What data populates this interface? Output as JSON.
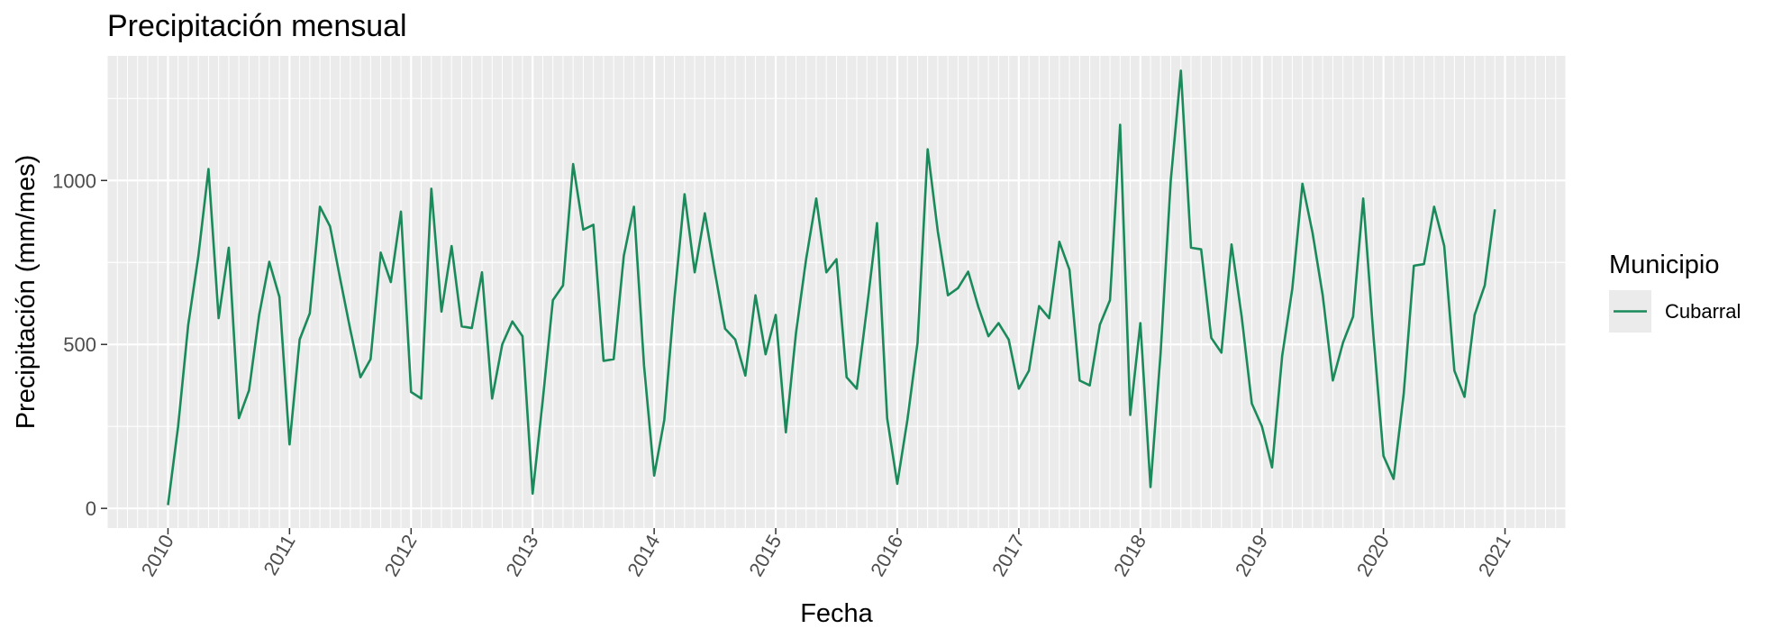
{
  "chart_data": {
    "type": "line",
    "title": "Precipitación mensual",
    "xlabel": "Fecha",
    "ylabel": "Precipitación (mm/mes)",
    "x_ticks": [
      "2010",
      "2011",
      "2012",
      "2013",
      "2014",
      "2015",
      "2016",
      "2017",
      "2018",
      "2019",
      "2020",
      "2021"
    ],
    "y_ticks": [
      "0",
      "500",
      "1000"
    ],
    "xlim": [
      "2009-07",
      "2021-07"
    ],
    "ylim": [
      -60,
      1380
    ],
    "grid": true,
    "grid_minor": "monthly",
    "legend_title": "Municipio",
    "legend_position": "right",
    "series": [
      {
        "name": "Cubarral",
        "color": "#1b8a5a",
        "x": [
          "2010-01",
          "2010-02",
          "2010-03",
          "2010-04",
          "2010-05",
          "2010-06",
          "2010-07",
          "2010-08",
          "2010-09",
          "2010-10",
          "2010-11",
          "2010-12",
          "2011-01",
          "2011-02",
          "2011-03",
          "2011-04",
          "2011-05",
          "2011-06",
          "2011-07",
          "2011-08",
          "2011-09",
          "2011-10",
          "2011-11",
          "2011-12",
          "2012-01",
          "2012-02",
          "2012-03",
          "2012-04",
          "2012-05",
          "2012-06",
          "2012-07",
          "2012-08",
          "2012-09",
          "2012-10",
          "2012-11",
          "2012-12",
          "2013-01",
          "2013-02",
          "2013-03",
          "2013-04",
          "2013-05",
          "2013-06",
          "2013-07",
          "2013-08",
          "2013-09",
          "2013-10",
          "2013-11",
          "2013-12",
          "2014-01",
          "2014-02",
          "2014-03",
          "2014-04",
          "2014-05",
          "2014-06",
          "2014-07",
          "2014-08",
          "2014-09",
          "2014-10",
          "2014-11",
          "2014-12",
          "2015-01",
          "2015-02",
          "2015-03",
          "2015-04",
          "2015-05",
          "2015-06",
          "2015-07",
          "2015-08",
          "2015-09",
          "2015-10",
          "2015-11",
          "2015-12",
          "2016-01",
          "2016-02",
          "2016-03",
          "2016-04",
          "2016-05",
          "2016-06",
          "2016-07",
          "2016-08",
          "2016-09",
          "2016-10",
          "2016-11",
          "2016-12",
          "2017-01",
          "2017-02",
          "2017-03",
          "2017-04",
          "2017-05",
          "2017-06",
          "2017-07",
          "2017-08",
          "2017-09",
          "2017-10",
          "2017-11",
          "2017-12",
          "2018-01",
          "2018-02",
          "2018-03",
          "2018-04",
          "2018-05",
          "2018-06",
          "2018-07",
          "2018-08",
          "2018-09",
          "2018-10",
          "2018-11",
          "2018-12",
          "2019-01",
          "2019-02",
          "2019-03",
          "2019-04",
          "2019-05",
          "2019-06",
          "2019-07",
          "2019-08",
          "2019-09",
          "2019-10",
          "2019-11",
          "2019-12",
          "2020-01",
          "2020-02",
          "2020-03",
          "2020-04",
          "2020-05",
          "2020-06",
          "2020-07",
          "2020-08",
          "2020-09",
          "2020-10",
          "2020-11",
          "2020-12"
        ],
        "values": [
          10,
          250,
          560,
          770,
          1035,
          580,
          795,
          275,
          360,
          590,
          752,
          645,
          195,
          515,
          595,
          920,
          860,
          700,
          545,
          400,
          455,
          780,
          690,
          905,
          355,
          335,
          975,
          600,
          800,
          555,
          550,
          720,
          335,
          500,
          570,
          525,
          45,
          330,
          635,
          680,
          1050,
          850,
          865,
          450,
          455,
          770,
          920,
          435,
          100,
          270,
          640,
          958,
          720,
          900,
          720,
          548,
          515,
          405,
          650,
          470,
          590,
          232,
          535,
          760,
          945,
          720,
          760,
          400,
          365,
          610,
          870,
          275,
          75,
          270,
          505,
          1095,
          845,
          650,
          672,
          722,
          615,
          525,
          565,
          515,
          365,
          420,
          617,
          580,
          813,
          728,
          390,
          375,
          560,
          635,
          1170,
          285,
          565,
          65,
          475,
          1000,
          1335,
          795,
          790,
          520,
          475,
          805,
          585,
          320,
          250,
          125,
          465,
          670,
          990,
          840,
          650,
          390,
          505,
          585,
          945,
          530,
          160,
          90,
          350,
          740,
          745,
          920,
          800,
          420,
          340,
          590,
          680,
          912
        ]
      }
    ]
  }
}
